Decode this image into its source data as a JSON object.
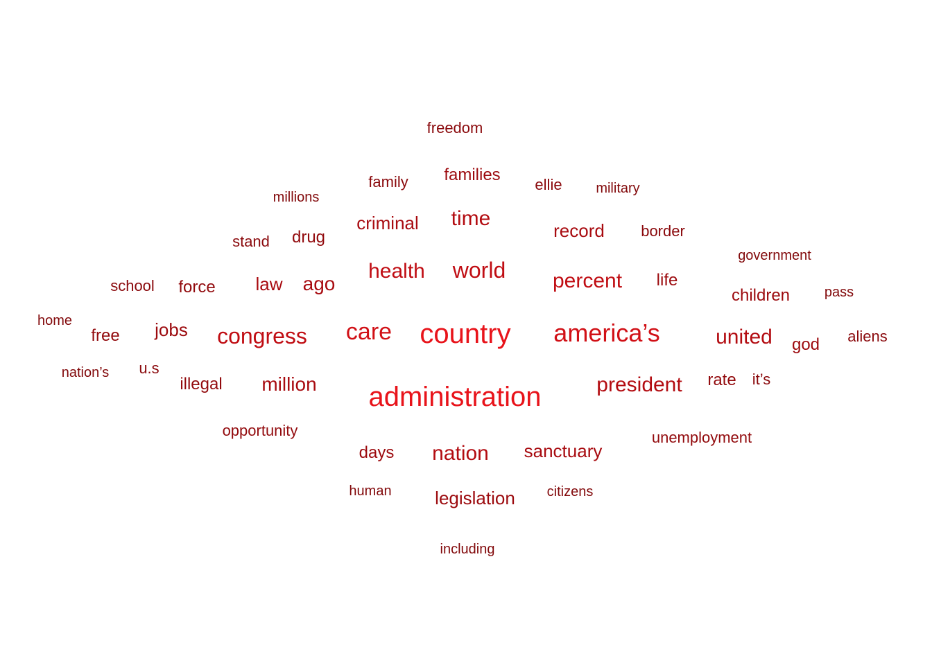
{
  "words": [
    {
      "text": "administration",
      "weight": 10,
      "color": "#e8131a"
    },
    {
      "text": "country",
      "weight": 9.6,
      "color": "#e8131a"
    },
    {
      "text": "america’s",
      "weight": 8.6,
      "color": "#d11016"
    },
    {
      "text": "care",
      "weight": 8,
      "color": "#d11016"
    },
    {
      "text": "congress",
      "weight": 7.6,
      "color": "#c00d13"
    },
    {
      "text": "world",
      "weight": 7.6,
      "color": "#c00d13"
    },
    {
      "text": "health",
      "weight": 7.2,
      "color": "#c00d13"
    },
    {
      "text": "percent",
      "weight": 7.2,
      "color": "#c00d13"
    },
    {
      "text": "united",
      "weight": 7,
      "color": "#b30c11"
    },
    {
      "text": "president",
      "weight": 7,
      "color": "#b30c11"
    },
    {
      "text": "time",
      "weight": 7,
      "color": "#b30c11"
    },
    {
      "text": "nation",
      "weight": 6.8,
      "color": "#b30c11"
    },
    {
      "text": "million",
      "weight": 6.6,
      "color": "#a80b10"
    },
    {
      "text": "ago",
      "weight": 6.6,
      "color": "#a80b10"
    },
    {
      "text": "criminal",
      "weight": 6.2,
      "color": "#a80b10"
    },
    {
      "text": "record",
      "weight": 6.2,
      "color": "#a80b10"
    },
    {
      "text": "sanctuary",
      "weight": 6.2,
      "color": "#a80b10"
    },
    {
      "text": "law",
      "weight": 6.2,
      "color": "#a80b10"
    },
    {
      "text": "legislation",
      "weight": 6,
      "color": "#9c0a0e"
    },
    {
      "text": "jobs",
      "weight": 6,
      "color": "#9c0a0e"
    },
    {
      "text": "families",
      "weight": 5.8,
      "color": "#9c0a0e"
    },
    {
      "text": "life",
      "weight": 5.8,
      "color": "#9c0a0e"
    },
    {
      "text": "god",
      "weight": 5.8,
      "color": "#9c0a0e"
    },
    {
      "text": "children",
      "weight": 5.6,
      "color": "#9c0a0e"
    },
    {
      "text": "days",
      "weight": 5.6,
      "color": "#9c0a0e"
    },
    {
      "text": "force",
      "weight": 5.4,
      "color": "#920a0d"
    },
    {
      "text": "illegal",
      "weight": 5.4,
      "color": "#920a0d"
    },
    {
      "text": "drug",
      "weight": 5.4,
      "color": "#920a0d"
    },
    {
      "text": "rate",
      "weight": 5.4,
      "color": "#920a0d"
    },
    {
      "text": "free",
      "weight": 5.4,
      "color": "#920a0d"
    },
    {
      "text": "opportunity",
      "weight": 5.2,
      "color": "#920a0d"
    },
    {
      "text": "unemployment",
      "weight": 5.2,
      "color": "#920a0d"
    },
    {
      "text": "border",
      "weight": 5,
      "color": "#8a090c"
    },
    {
      "text": "family",
      "weight": 5,
      "color": "#8a090c"
    },
    {
      "text": "stand",
      "weight": 5,
      "color": "#8a090c"
    },
    {
      "text": "school",
      "weight": 5,
      "color": "#8a090c"
    },
    {
      "text": "freedom",
      "weight": 4.8,
      "color": "#8a090c"
    },
    {
      "text": "ellie",
      "weight": 4.8,
      "color": "#8a090c"
    },
    {
      "text": "aliens",
      "weight": 4.8,
      "color": "#8a090c"
    },
    {
      "text": "it’s",
      "weight": 4.8,
      "color": "#8a090c"
    },
    {
      "text": "u.s",
      "weight": 4.8,
      "color": "#8a090c"
    },
    {
      "text": "millions",
      "weight": 4.6,
      "color": "#82090b"
    },
    {
      "text": "military",
      "weight": 4.6,
      "color": "#82090b"
    },
    {
      "text": "government",
      "weight": 4.6,
      "color": "#82090b"
    },
    {
      "text": "pass",
      "weight": 4.6,
      "color": "#82090b"
    },
    {
      "text": "home",
      "weight": 4.6,
      "color": "#82090b"
    },
    {
      "text": "nation’s",
      "weight": 4.6,
      "color": "#82090b"
    },
    {
      "text": "human",
      "weight": 4.6,
      "color": "#82090b"
    },
    {
      "text": "citizens",
      "weight": 4.6,
      "color": "#82090b"
    },
    {
      "text": "including",
      "weight": 4.6,
      "color": "#82090b"
    }
  ]
}
